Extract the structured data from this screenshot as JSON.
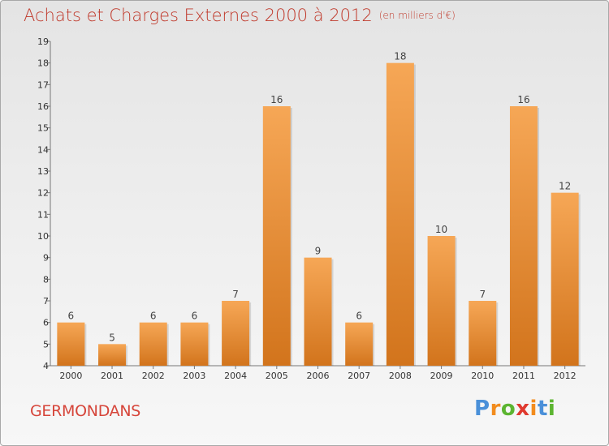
{
  "header": {
    "title": "Achats et Charges Externes 2000 à 2012",
    "unit": "(en milliers d'€)"
  },
  "footer": {
    "commune": "GERMONDANS",
    "logo_text": "Proxiti",
    "logo_letters": [
      {
        "ch": "P",
        "color": "#4a90d9"
      },
      {
        "ch": "r",
        "color": "#f28c1e"
      },
      {
        "ch": "o",
        "color": "#5cb531"
      },
      {
        "ch": "x",
        "color": "#e03a2f"
      },
      {
        "ch": "i",
        "color": "#f28c1e"
      },
      {
        "ch": "t",
        "color": "#4a90d9"
      },
      {
        "ch": "i",
        "color": "#5cb531"
      }
    ]
  },
  "colors": {
    "bar_top": "#f6a756",
    "bar_bottom": "#d2741c",
    "title": "#c0392b",
    "commune": "#d6453a"
  },
  "chart_data": {
    "type": "bar",
    "title": "Achats et Charges Externes 2000 à 2012",
    "subtitle": "(en milliers d'€)",
    "xlabel": "",
    "ylabel": "",
    "categories": [
      "2000",
      "2001",
      "2002",
      "2003",
      "2004",
      "2005",
      "2006",
      "2007",
      "2008",
      "2009",
      "2010",
      "2011",
      "2012"
    ],
    "values": [
      6,
      5,
      6,
      6,
      7,
      16,
      9,
      6,
      18,
      10,
      7,
      16,
      12
    ],
    "ylim": [
      4,
      19
    ],
    "yticks": [
      4,
      5,
      6,
      7,
      8,
      9,
      10,
      11,
      12,
      13,
      14,
      15,
      16,
      17,
      18,
      19
    ],
    "grid": false,
    "legend": "none",
    "data_labels": true
  }
}
